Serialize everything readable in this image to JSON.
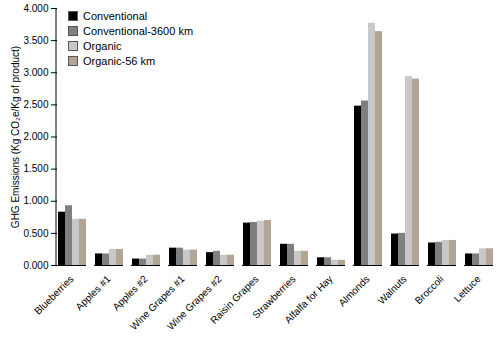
{
  "chart_data": {
    "type": "bar",
    "y_label": "GHG Emissions (Kg CO₂e/Kg of product)",
    "categories": [
      "Blueberries",
      "Apples #1",
      "Apples #2",
      "Wine Grapes #1",
      "Wine Grapes #2",
      "Raisin Grapes",
      "Strawberries",
      "Alfalfa for Hay",
      "Almonds",
      "Walnuts",
      "Broccoli",
      "Lettuce"
    ],
    "series": [
      {
        "name": "Conventional",
        "color": "#000000",
        "values": [
          0.83,
          0.18,
          0.1,
          0.27,
          0.2,
          0.66,
          0.33,
          0.12,
          2.48,
          0.49,
          0.35,
          0.18
        ]
      },
      {
        "name": "Conventional-3600 km",
        "color": "#7f7f7f",
        "values": [
          0.93,
          0.18,
          0.1,
          0.27,
          0.22,
          0.67,
          0.33,
          0.12,
          2.56,
          0.5,
          0.36,
          0.18
        ]
      },
      {
        "name": "Organic",
        "color": "#c8c8c8",
        "values": [
          0.72,
          0.25,
          0.16,
          0.24,
          0.16,
          0.69,
          0.22,
          0.08,
          3.77,
          2.94,
          0.39,
          0.26
        ]
      },
      {
        "name": "Organic-56 km",
        "color": "#b3a593",
        "values": [
          0.72,
          0.25,
          0.16,
          0.24,
          0.16,
          0.7,
          0.22,
          0.08,
          3.64,
          2.9,
          0.39,
          0.26
        ]
      }
    ],
    "ylim": [
      0,
      4
    ],
    "yticks": [
      {
        "value": 0,
        "label": "0.000"
      },
      {
        "value": 0.5,
        "label": "0.500"
      },
      {
        "value": 1,
        "label": "1.000"
      },
      {
        "value": 1.5,
        "label": "1.500"
      },
      {
        "value": 2,
        "label": "2.000"
      },
      {
        "value": 2.5,
        "label": "2.500"
      },
      {
        "value": 3,
        "label": "3.000"
      },
      {
        "value": 3.5,
        "label": "3.500"
      },
      {
        "value": 4,
        "label": "4.000"
      }
    ],
    "grid": false,
    "legend": "top-left"
  }
}
